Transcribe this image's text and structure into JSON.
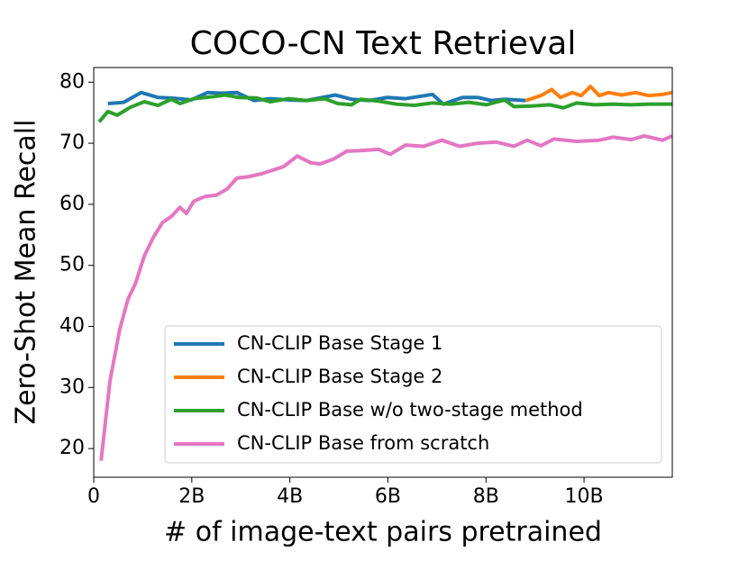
{
  "chart_data": {
    "type": "line",
    "title": "COCO-CN Text Retrieval",
    "x_label": "# of image-text pairs pretrained",
    "y_label": "Zero-Shot Mean Recall",
    "xlim": [
      0,
      11.8
    ],
    "ylim": [
      15.3,
      82.4
    ],
    "xticks": [
      0,
      {
        "value": 2,
        "label": "2B"
      },
      {
        "value": 4,
        "label": "4B"
      },
      {
        "value": 6,
        "label": "6B"
      },
      {
        "value": 8,
        "label": "8B"
      },
      {
        "value": 10,
        "label": "10B"
      }
    ],
    "yticks": [
      20,
      30,
      40,
      50,
      60,
      70,
      80
    ],
    "legend": "lower right",
    "series": [
      {
        "name": "CN-CLIP Base Stage 1",
        "color": "#1f77b4",
        "x": [
          0.29,
          0.61,
          0.97,
          1.31,
          1.58,
          1.99,
          2.32,
          2.59,
          2.92,
          3.27,
          3.6,
          3.97,
          4.34,
          4.93,
          5.26,
          5.62,
          5.99,
          6.36,
          6.91,
          7.13,
          7.52,
          7.83,
          8.11,
          8.38,
          8.81
        ],
        "values": [
          76.5,
          76.7,
          78.3,
          77.5,
          77.4,
          77.1,
          78.3,
          78.2,
          78.3,
          77.0,
          77.3,
          77.1,
          77.0,
          77.9,
          77.2,
          77.0,
          77.5,
          77.3,
          78.0,
          76.4,
          77.5,
          77.5,
          77.0,
          77.2,
          77.0
        ]
      },
      {
        "name": "CN-CLIP Base Stage 2",
        "color": "#ff7f0e",
        "x": [
          8.81,
          9.12,
          9.34,
          9.52,
          9.76,
          9.94,
          10.13,
          10.31,
          10.5,
          10.77,
          11.05,
          11.32,
          11.6,
          11.8
        ],
        "values": [
          77.0,
          77.8,
          78.8,
          77.5,
          78.3,
          77.8,
          79.3,
          77.8,
          78.3,
          77.9,
          78.3,
          77.8,
          78.0,
          78.3
        ]
      },
      {
        "name": "CN-CLIP Base w/o two-stage method",
        "color": "#2ca02c",
        "x": [
          0.11,
          0.29,
          0.48,
          0.75,
          1.03,
          1.31,
          1.58,
          1.76,
          2.04,
          2.41,
          2.68,
          2.96,
          3.33,
          3.6,
          3.97,
          4.34,
          4.71,
          4.98,
          5.26,
          5.44,
          5.81,
          6.18,
          6.54,
          6.91,
          7.28,
          7.65,
          8.01,
          8.38,
          8.57,
          8.93,
          9.3,
          9.58,
          9.85,
          10.22,
          10.59,
          10.96,
          11.32,
          11.8
        ],
        "values": [
          73.5,
          75.2,
          74.6,
          75.9,
          76.8,
          76.2,
          77.2,
          76.5,
          77.3,
          77.6,
          77.9,
          77.5,
          77.4,
          76.8,
          77.3,
          77.0,
          77.3,
          76.5,
          76.3,
          77.2,
          76.9,
          76.4,
          76.2,
          76.6,
          76.4,
          76.7,
          76.3,
          77.1,
          76.0,
          76.1,
          76.3,
          75.8,
          76.6,
          76.3,
          76.4,
          76.3,
          76.4,
          76.4
        ]
      },
      {
        "name": "CN-CLIP Base from scratch",
        "color": "#e377c2",
        "x": [
          0.15,
          0.33,
          0.53,
          0.7,
          0.85,
          1.03,
          1.21,
          1.4,
          1.58,
          1.76,
          1.89,
          2.04,
          2.28,
          2.5,
          2.72,
          2.92,
          3.14,
          3.42,
          3.69,
          3.88,
          4.15,
          4.43,
          4.61,
          4.89,
          5.16,
          5.44,
          5.81,
          6.05,
          6.36,
          6.73,
          7.1,
          7.46,
          7.83,
          8.2,
          8.57,
          8.84,
          9.12,
          9.39,
          9.85,
          10.31,
          10.59,
          10.96,
          11.23,
          11.6,
          11.8
        ],
        "values": [
          18,
          31,
          39.5,
          44.5,
          47,
          51.5,
          54.5,
          57,
          58,
          59.5,
          58.5,
          60.5,
          61.3,
          61.5,
          62.5,
          64.3,
          64.5,
          65,
          65.7,
          66.2,
          67.9,
          66.8,
          66.6,
          67.4,
          68.7,
          68.8,
          69,
          68.2,
          69.7,
          69.5,
          70.5,
          69.5,
          70,
          70.2,
          69.5,
          70.5,
          69.6,
          70.7,
          70.3,
          70.5,
          71,
          70.6,
          71.2,
          70.5,
          71.2
        ]
      }
    ]
  }
}
